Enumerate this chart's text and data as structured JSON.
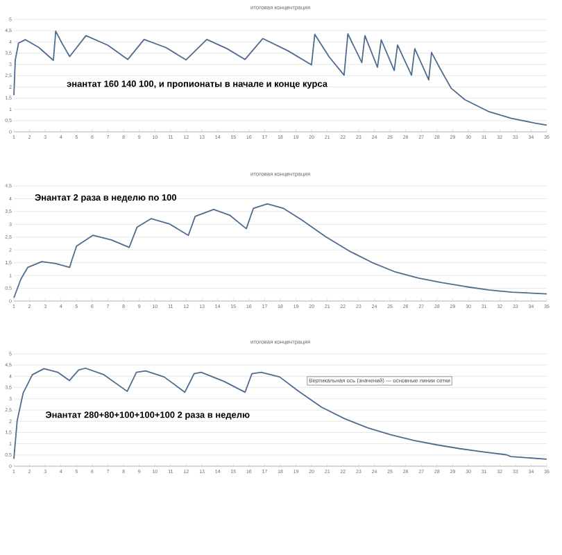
{
  "chart_data": [
    {
      "type": "line",
      "title": "итоговая концентрация",
      "xlim": [
        1,
        35
      ],
      "xticks": [
        1,
        2,
        3,
        4,
        5,
        6,
        7,
        8,
        9,
        10,
        11,
        12,
        13,
        14,
        15,
        16,
        17,
        18,
        19,
        20,
        21,
        22,
        23,
        24,
        25,
        26,
        27,
        28,
        29,
        30,
        31,
        32,
        33,
        34,
        35
      ],
      "ylim": [
        0,
        5
      ],
      "yticks": [
        0,
        {
          "value": 0.5,
          "label": "0,5"
        },
        1,
        {
          "value": 1.5,
          "label": "1,5"
        },
        2,
        {
          "value": 2.5,
          "label": "2,5"
        },
        3,
        {
          "value": 3.5,
          "label": "3,5"
        },
        4,
        {
          "value": 4.5,
          "label": "4,5"
        },
        5
      ],
      "grid": "y",
      "marker": "none",
      "line_style": "solid",
      "annotations": [
        "энантат 160 140 100, и пропионаты в начале и конце курса"
      ],
      "series": [
        {
          "color": "#4f6b8f",
          "x": [
            1,
            1.09,
            1.3,
            1.74,
            2.6,
            3.52,
            3.67,
            4.1,
            4.56,
            5.6,
            7.0,
            8.27,
            9.31,
            10.7,
            11.98,
            13.31,
            14.6,
            15.75,
            16.88,
            18.5,
            19.99,
            20.2,
            21.1,
            22.07,
            22.31,
            23.2,
            23.4,
            24.2,
            24.44,
            25.27,
            25.48,
            26.37,
            26.58,
            27.47,
            27.65,
            28.15,
            28.9,
            29.78,
            31.27,
            32.75,
            34.23,
            35
          ],
          "values": [
            1.63,
            3.2,
            3.95,
            4.1,
            3.75,
            3.18,
            4.48,
            3.9,
            3.35,
            4.28,
            3.85,
            3.22,
            4.11,
            3.75,
            3.2,
            4.11,
            3.7,
            3.22,
            4.15,
            3.6,
            2.98,
            4.34,
            3.35,
            2.52,
            4.36,
            3.08,
            4.28,
            2.87,
            4.09,
            2.73,
            3.86,
            2.52,
            3.7,
            2.31,
            3.53,
            2.87,
            1.94,
            1.43,
            0.91,
            0.6,
            0.39,
            0.3
          ]
        }
      ]
    },
    {
      "type": "line",
      "title": "итоговая концентрация",
      "xlim": [
        1,
        35
      ],
      "xticks": [
        1,
        2,
        3,
        4,
        5,
        6,
        7,
        8,
        9,
        10,
        11,
        12,
        13,
        14,
        15,
        16,
        17,
        18,
        19,
        20,
        21,
        22,
        23,
        24,
        25,
        26,
        27,
        28,
        29,
        30,
        31,
        32,
        33,
        34,
        35
      ],
      "ylim": [
        0,
        4.5
      ],
      "yticks": [
        0,
        {
          "value": 0.5,
          "label": "0,5"
        },
        1,
        {
          "value": 1.5,
          "label": "1,5"
        },
        2,
        {
          "value": 2.5,
          "label": "2,5"
        },
        3,
        {
          "value": 3.5,
          "label": "3,5"
        },
        4,
        {
          "value": 4.5,
          "label": "4,5"
        }
      ],
      "grid": "y",
      "marker": "none",
      "line_style": "solid",
      "annotations": [
        "Энантат 2 раза в неделю по 100"
      ],
      "series": [
        {
          "color": "#4f6b8f",
          "x": [
            1,
            1.45,
            1.89,
            2.78,
            3.67,
            4.56,
            4.7,
            5.0,
            6.04,
            7.23,
            8.36,
            8.86,
            9.75,
            10.94,
            12.13,
            12.57,
            13.75,
            14.79,
            15.83,
            16.28,
            17.17,
            18.21,
            19.4,
            20.88,
            22.36,
            23.85,
            25.33,
            26.82,
            28.3,
            29.78,
            31.27,
            32.75,
            35
          ],
          "values": [
            0.13,
            0.86,
            1.32,
            1.54,
            1.47,
            1.32,
            1.6,
            2.15,
            2.57,
            2.39,
            2.1,
            2.89,
            3.22,
            3.01,
            2.57,
            3.31,
            3.58,
            3.35,
            2.83,
            3.62,
            3.8,
            3.62,
            3.16,
            2.52,
            1.97,
            1.51,
            1.14,
            0.9,
            0.72,
            0.57,
            0.44,
            0.35,
            0.28
          ]
        }
      ]
    },
    {
      "type": "line",
      "title": "итоговая концентрация",
      "xlim": [
        1,
        35
      ],
      "xticks": [
        1,
        2,
        3,
        4,
        5,
        6,
        7,
        8,
        9,
        10,
        11,
        12,
        13,
        14,
        15,
        16,
        17,
        18,
        19,
        20,
        21,
        22,
        23,
        24,
        25,
        26,
        27,
        28,
        29,
        30,
        31,
        32,
        33,
        34,
        35
      ],
      "ylim": [
        0,
        5
      ],
      "yticks": [
        0,
        {
          "value": 0.5,
          "label": "0,5"
        },
        1,
        {
          "value": 1.5,
          "label": "1,5"
        },
        2,
        {
          "value": 2.5,
          "label": "2,5"
        },
        3,
        {
          "value": 3.5,
          "label": "3,5"
        },
        4,
        {
          "value": 4.5,
          "label": "4,5"
        },
        5
      ],
      "grid": "y",
      "marker": "none",
      "line_style": "solid",
      "annotations": [
        "Энантат 280+80+100+100+100 2 раза в неделю",
        "Вертикальная ось (значений) — основные линии сетки"
      ],
      "series": [
        {
          "color": "#4f6b8f",
          "x": [
            1,
            1.21,
            1.59,
            2.18,
            2.92,
            3.8,
            4.54,
            5.13,
            5.57,
            6.75,
            8.23,
            8.82,
            9.41,
            10.59,
            11.91,
            12.5,
            12.95,
            14.42,
            15.75,
            16.19,
            16.78,
            17.96,
            19.14,
            20.62,
            22.09,
            23.57,
            25.04,
            26.52,
            28.0,
            29.47,
            30.94,
            32.42,
            32.71,
            35
          ],
          "values": [
            0.33,
            2.02,
            3.25,
            4.07,
            4.34,
            4.18,
            3.81,
            4.28,
            4.36,
            4.07,
            3.33,
            4.18,
            4.24,
            3.97,
            3.29,
            4.12,
            4.18,
            3.77,
            3.29,
            4.12,
            4.18,
            3.97,
            3.35,
            2.63,
            2.12,
            1.71,
            1.4,
            1.15,
            0.95,
            0.78,
            0.64,
            0.51,
            0.43,
            0.31
          ]
        }
      ]
    }
  ]
}
